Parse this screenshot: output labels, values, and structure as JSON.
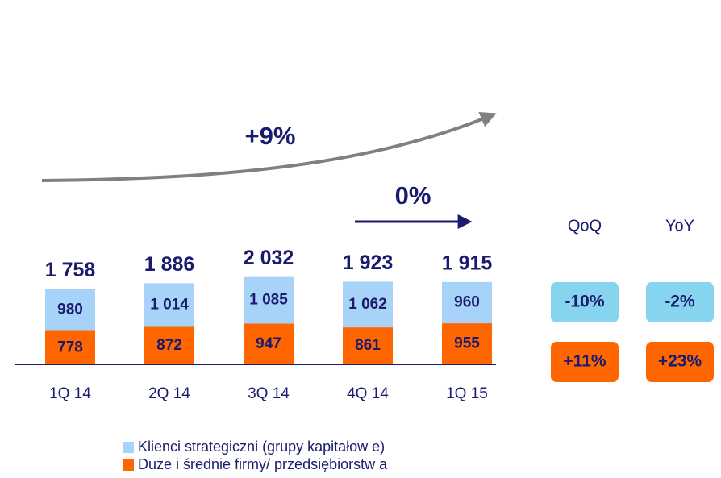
{
  "chart_data": {
    "type": "stacked_bar",
    "categories": [
      "1Q 14",
      "2Q 14",
      "3Q 14",
      "4Q 14",
      "1Q 15"
    ],
    "series": [
      {
        "name": "Duże i średnie firmy/ przedsiębiorstw a",
        "color": "#ff6600",
        "values": [
          778,
          872,
          947,
          861,
          955
        ]
      },
      {
        "name": "Klienci strategiczni (grupy kapitałow e)",
        "color": "#a6d3f7",
        "values": [
          980,
          1014,
          1085,
          1062,
          960
        ],
        "value_labels": [
          "980",
          "1 014",
          "1 085",
          "1 062",
          "960"
        ]
      }
    ],
    "totals": [
      1758,
      1886,
      2032,
      1923,
      1915
    ],
    "total_labels": [
      "1 758",
      "1 886",
      "2 032",
      "1 923",
      "1 915"
    ],
    "ylim": [
      0,
      2100
    ],
    "annotations": {
      "long_term": "+9%",
      "short_term": "0%"
    },
    "changes": {
      "headers": [
        "QoQ",
        "YoY"
      ],
      "rows": [
        {
          "color": "#86d4ee",
          "labels": [
            "-10%",
            "-2%"
          ]
        },
        {
          "color": "#ff6600",
          "labels": [
            "+11%",
            "+23%"
          ]
        }
      ]
    }
  }
}
